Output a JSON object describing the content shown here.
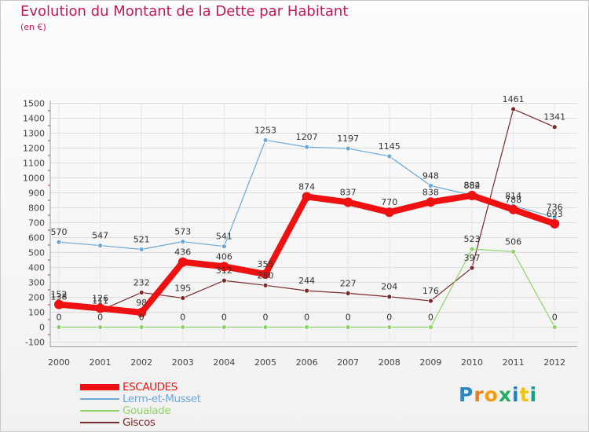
{
  "title": "Evolution du Montant de la Dette par Habitant",
  "subtitle": "(en €)",
  "logo": {
    "letters": [
      {
        "char": "P",
        "color": "#2e86c1"
      },
      {
        "char": "r",
        "color": "#e67e22"
      },
      {
        "char": "o",
        "color": "#f39c12"
      },
      {
        "char": "x",
        "color": "#27ae60"
      },
      {
        "char": "i",
        "color": "#2980b9"
      },
      {
        "char": "t",
        "color": "#f1c40f"
      },
      {
        "char": "i",
        "color": "#16a085"
      }
    ]
  },
  "chart_data": {
    "type": "line",
    "title": "Evolution du Montant de la Dette par Habitant",
    "subtitle": "(en €)",
    "xlabel": "",
    "ylabel": "",
    "x": [
      "2000",
      "2001",
      "2002",
      "2003",
      "2004",
      "2005",
      "2006",
      "2007",
      "2008",
      "2009",
      "2010",
      "2011",
      "2012"
    ],
    "ylim": [
      -100,
      1500
    ],
    "yticks": [
      -100,
      0,
      100,
      200,
      300,
      400,
      500,
      600,
      700,
      800,
      900,
      1000,
      1100,
      1200,
      1300,
      1400,
      1500
    ],
    "grid": true,
    "legend_position": "bottom-left",
    "series": [
      {
        "name": "ESCAUDES",
        "color": "#ee1111",
        "width": 8,
        "values": [
          152,
          126,
          98,
          436,
          406,
          355,
          874,
          837,
          770,
          838,
          882,
          788,
          693
        ],
        "labels": [
          "152",
          "126",
          "98",
          "436",
          "406",
          "355",
          "874",
          "837",
          "770",
          "838",
          "882",
          "788",
          "693"
        ]
      },
      {
        "name": "Lerm-et-Musset",
        "color": "#6aa8d8",
        "width": 1.2,
        "values": [
          570,
          547,
          521,
          573,
          541,
          1253,
          1207,
          1197,
          1145,
          948,
          884,
          814,
          736
        ],
        "labels": [
          "570",
          "547",
          "521",
          "573",
          "541",
          "1253",
          "1207",
          "1197",
          "1145",
          "948",
          "884",
          "814",
          "736"
        ]
      },
      {
        "name": "Goualade",
        "color": "#8fd46a",
        "width": 1.2,
        "values": [
          0,
          0,
          0,
          0,
          0,
          0,
          0,
          0,
          0,
          0,
          523,
          506,
          0
        ],
        "labels": [
          "0",
          "0",
          "0",
          "0",
          "0",
          "0",
          "0",
          "0",
          "0",
          "0",
          "523",
          "506",
          "0"
        ]
      },
      {
        "name": "Giscos",
        "color": "#7a2a2a",
        "width": 1.2,
        "values": [
          138,
          111,
          232,
          195,
          312,
          280,
          244,
          227,
          204,
          176,
          397,
          1461,
          1341
        ],
        "labels": [
          "138",
          "111",
          "232",
          "195",
          "312",
          "280",
          "244",
          "227",
          "204",
          "176",
          "397",
          "1461",
          "1341"
        ]
      }
    ]
  }
}
